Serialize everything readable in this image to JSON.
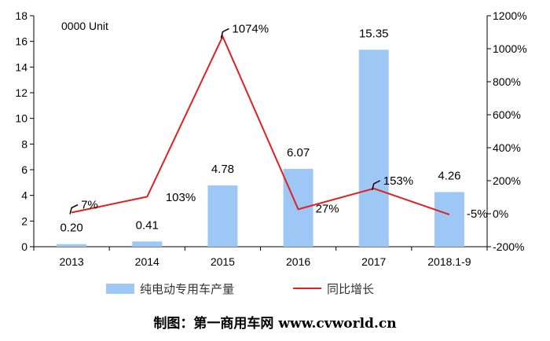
{
  "chart_data": {
    "type": "bar+line",
    "unit_label": "0000 Unit",
    "categories": [
      "2013",
      "2014",
      "2015",
      "2016",
      "2017",
      "2018.1-9"
    ],
    "bar_series": {
      "name": "纯电动专用车产量",
      "values": [
        0.2,
        0.41,
        4.78,
        6.07,
        15.35,
        4.26
      ],
      "labels": [
        "0.20",
        "0.41",
        "4.78",
        "6.07",
        "15.35",
        "4.26"
      ],
      "color": "#9dc8f5"
    },
    "line_series": {
      "name": "同比增长",
      "values": [
        7,
        103,
        1074,
        27,
        153,
        -5
      ],
      "labels": [
        "7%",
        "103%",
        "1074%",
        "27%",
        "153%",
        "-5%"
      ],
      "color": "#e02020"
    },
    "y_left": {
      "min": 0,
      "max": 18,
      "ticks": [
        "0",
        "2",
        "4",
        "6",
        "8",
        "10",
        "12",
        "14",
        "16",
        "18"
      ]
    },
    "y_right": {
      "min": -200,
      "max": 1200,
      "ticks": [
        "-200%",
        "0%",
        "200%",
        "400%",
        "600%",
        "800%",
        "1000%",
        "1200%"
      ]
    },
    "legend": {
      "bar_label": "纯电动专用车产量",
      "line_label": "同比增长",
      "position": "bottom"
    },
    "credit": "制图：第一商用车网 www.cvworld.cn"
  }
}
